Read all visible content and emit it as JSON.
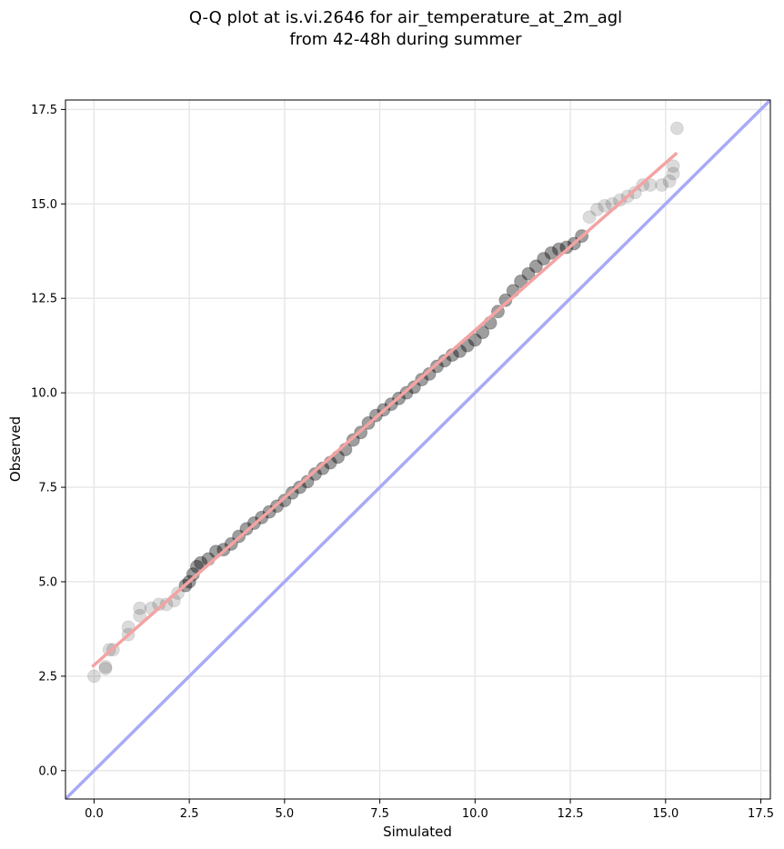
{
  "chart_data": {
    "type": "scatter",
    "title": "Q-Q plot at is.vi.2646 for air_temperature_at_2m_agl",
    "subtitle": "from 42-48h during summer",
    "xlabel": "Simulated",
    "ylabel": "Observed",
    "xlim": [
      -0.75,
      17.75
    ],
    "ylim": [
      -0.75,
      17.75
    ],
    "x_ticks": [
      0.0,
      2.5,
      5.0,
      7.5,
      10.0,
      12.5,
      15.0,
      17.5
    ],
    "y_ticks": [
      0.0,
      2.5,
      5.0,
      7.5,
      10.0,
      12.5,
      15.0,
      17.5
    ],
    "x_tick_labels": [
      "0.0",
      "2.5",
      "5.0",
      "7.5",
      "10.0",
      "12.5",
      "15.0",
      "17.5"
    ],
    "y_tick_labels": [
      "0.0",
      "2.5",
      "5.0",
      "7.5",
      "10.0",
      "12.5",
      "15.0",
      "17.5"
    ],
    "grid": true,
    "series": [
      {
        "kind": "quantile-points",
        "color": "#000000",
        "points": [
          [
            0.0,
            2.5
          ],
          [
            0.3,
            2.7
          ],
          [
            0.3,
            2.75
          ],
          [
            0.4,
            3.2
          ],
          [
            0.5,
            3.2
          ],
          [
            0.9,
            3.6
          ],
          [
            0.9,
            3.8
          ],
          [
            1.2,
            4.1
          ],
          [
            1.2,
            4.3
          ],
          [
            1.5,
            4.3
          ],
          [
            1.7,
            4.4
          ],
          [
            1.9,
            4.4
          ],
          [
            2.1,
            4.5
          ],
          [
            2.2,
            4.7
          ],
          [
            2.4,
            4.9
          ],
          [
            2.5,
            5.0
          ],
          [
            2.6,
            5.2
          ],
          [
            2.7,
            5.4
          ],
          [
            2.8,
            5.5
          ],
          [
            3.0,
            5.6
          ],
          [
            3.2,
            5.8
          ],
          [
            3.4,
            5.85
          ],
          [
            3.6,
            6.0
          ],
          [
            3.8,
            6.2
          ],
          [
            4.0,
            6.4
          ],
          [
            4.2,
            6.55
          ],
          [
            4.4,
            6.7
          ],
          [
            4.6,
            6.85
          ],
          [
            4.8,
            7.0
          ],
          [
            5.0,
            7.15
          ],
          [
            5.2,
            7.35
          ],
          [
            5.4,
            7.5
          ],
          [
            5.6,
            7.65
          ],
          [
            5.8,
            7.85
          ],
          [
            6.0,
            8.0
          ],
          [
            6.2,
            8.15
          ],
          [
            6.4,
            8.3
          ],
          [
            6.6,
            8.5
          ],
          [
            6.8,
            8.75
          ],
          [
            7.0,
            8.95
          ],
          [
            7.2,
            9.2
          ],
          [
            7.4,
            9.4
          ],
          [
            7.6,
            9.55
          ],
          [
            7.8,
            9.7
          ],
          [
            8.0,
            9.85
          ],
          [
            8.2,
            10.0
          ],
          [
            8.4,
            10.15
          ],
          [
            8.6,
            10.35
          ],
          [
            8.8,
            10.5
          ],
          [
            9.0,
            10.7
          ],
          [
            9.2,
            10.85
          ],
          [
            9.4,
            11.0
          ],
          [
            9.6,
            11.1
          ],
          [
            9.8,
            11.25
          ],
          [
            10.0,
            11.4
          ],
          [
            10.2,
            11.6
          ],
          [
            10.4,
            11.85
          ],
          [
            10.6,
            12.15
          ],
          [
            10.8,
            12.45
          ],
          [
            11.0,
            12.7
          ],
          [
            11.2,
            12.95
          ],
          [
            11.4,
            13.15
          ],
          [
            11.6,
            13.35
          ],
          [
            11.8,
            13.55
          ],
          [
            12.0,
            13.7
          ],
          [
            12.2,
            13.8
          ],
          [
            12.4,
            13.85
          ],
          [
            12.6,
            13.95
          ],
          [
            12.8,
            14.15
          ],
          [
            13.0,
            14.65
          ],
          [
            13.2,
            14.85
          ],
          [
            13.4,
            14.95
          ],
          [
            13.6,
            15.0
          ],
          [
            13.8,
            15.1
          ],
          [
            14.0,
            15.2
          ],
          [
            14.2,
            15.3
          ],
          [
            14.4,
            15.5
          ],
          [
            14.6,
            15.5
          ],
          [
            14.9,
            15.5
          ],
          [
            15.1,
            15.6
          ],
          [
            15.2,
            15.8
          ],
          [
            15.2,
            16.0
          ],
          [
            15.3,
            17.0
          ]
        ]
      },
      {
        "kind": "fit-line",
        "color": "#f4a3a3",
        "points": [
          [
            -0.05,
            2.75
          ],
          [
            15.3,
            16.35
          ]
        ]
      },
      {
        "kind": "identity-line",
        "color": "#a9aaf6",
        "points": [
          [
            -0.75,
            -0.75
          ],
          [
            17.75,
            17.75
          ]
        ]
      }
    ]
  }
}
